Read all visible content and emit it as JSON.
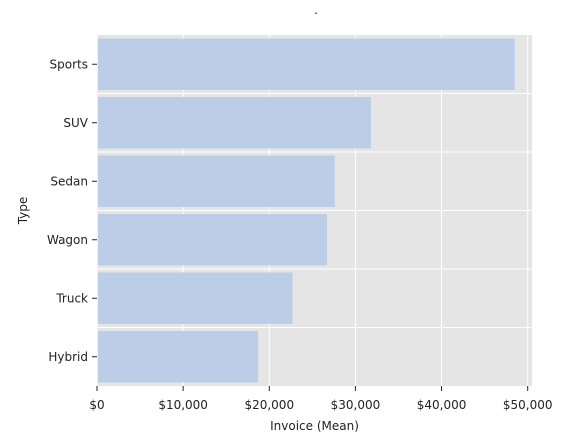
{
  "chart_data": {
    "type": "bar",
    "orientation": "horizontal",
    "title": ".",
    "xlabel": "Invoice (Mean)",
    "ylabel": "Type",
    "categories": [
      "Sports",
      "SUV",
      "Sedan",
      "Wagon",
      "Truck",
      "Hybrid"
    ],
    "values": [
      48500,
      31800,
      27600,
      26700,
      22700,
      18700
    ],
    "xlim": [
      0,
      50500
    ],
    "xticks": [
      0,
      10000,
      20000,
      30000,
      40000,
      50000
    ],
    "xtick_labels": [
      "$0",
      "$10,000",
      "$20,000",
      "$30,000",
      "$40,000",
      "$50,000"
    ],
    "grid": true,
    "colors": {
      "plot_background": "#e5e5e5",
      "bar": "#bccde8",
      "grid": "#ffffff",
      "text": "#222222"
    }
  }
}
